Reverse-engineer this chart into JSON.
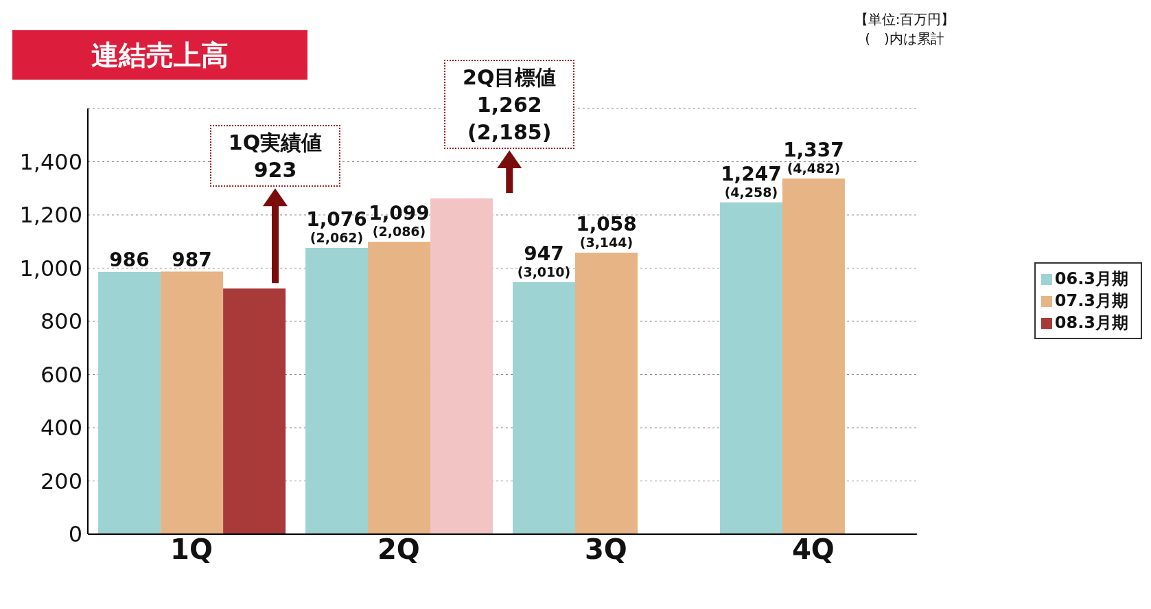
{
  "chart_data": {
    "type": "bar",
    "title": "連結売上高",
    "categories": [
      "1Q",
      "2Q",
      "3Q",
      "4Q"
    ],
    "series": [
      {
        "name": "06.3月期",
        "color": "#9ed3d3",
        "values": [
          986,
          1076,
          947,
          1247
        ],
        "value_labels": [
          "986",
          "1,076\n(2,062)",
          "947\n(3,010)",
          "1,247\n(4,258)"
        ]
      },
      {
        "name": "07.3月期",
        "color": "#e6b485",
        "values": [
          987,
          1099,
          1058,
          1337
        ],
        "value_labels": [
          "987",
          "1,099\n(2,086)",
          "1,058\n(3,144)",
          "1,337\n(4,482)"
        ]
      },
      {
        "name": "08.3月期",
        "color": "#a83a3a",
        "colors": [
          "#a83a3a",
          "#f2c4c4",
          null,
          null
        ],
        "values": [
          923,
          1262,
          null,
          null
        ],
        "value_labels": [
          "1Q実績値\n923",
          "2Q目標値\n1,262\n(2,185)",
          null,
          null
        ]
      }
    ],
    "annotations": [
      "【単位:百万円】",
      "(　)内は累計"
    ],
    "ylim": [
      0,
      1600
    ],
    "yticks": [
      0,
      200,
      400,
      600,
      800,
      {
        "value": 1000,
        "label": "1,000"
      },
      {
        "value": 1200,
        "label": "1,200"
      },
      {
        "value": 1400,
        "label": "1,400"
      },
      {
        "value": 1600,
        "label": null
      }
    ],
    "grid": "y",
    "legend": "right"
  }
}
